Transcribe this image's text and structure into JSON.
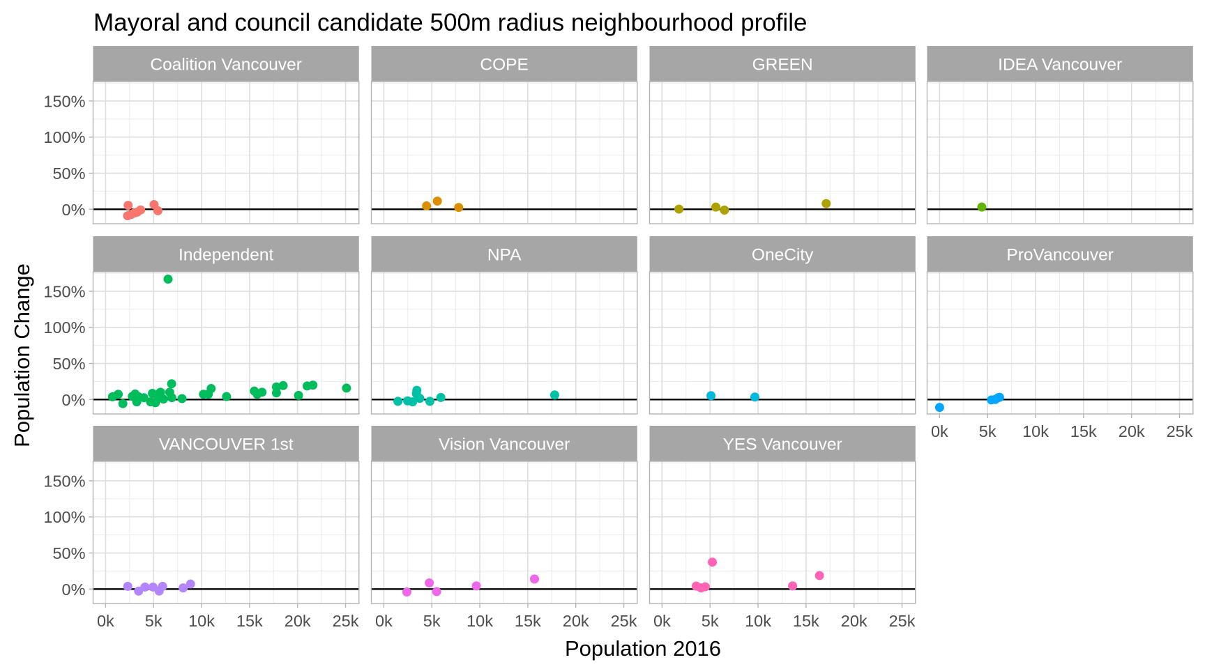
{
  "chart_data": {
    "type": "scatter",
    "title": "Mayoral and council candidate 500m radius neighbourhood profile",
    "xlabel": "Population 2016",
    "ylabel": "Population Change",
    "xlim": [
      -1300,
      26400
    ],
    "ylim": [
      -20,
      177
    ],
    "x_ticks": [
      0,
      5000,
      10000,
      15000,
      20000,
      25000
    ],
    "x_tick_labels": [
      "0k",
      "5k",
      "10k",
      "15k",
      "20k",
      "25k"
    ],
    "y_ticks": [
      0,
      50,
      100,
      150
    ],
    "y_tick_labels": [
      "0%",
      "50%",
      "100%",
      "150%"
    ],
    "grid": true,
    "reference_line_y": 0,
    "facets": [
      {
        "name": "Coalition Vancouver",
        "color": "#F8766D",
        "points": [
          [
            2350,
            5.5
          ],
          [
            2300,
            -9
          ],
          [
            2700,
            -7
          ],
          [
            3000,
            -5
          ],
          [
            3300,
            -4
          ],
          [
            3650,
            -1
          ],
          [
            5050,
            6.5
          ],
          [
            5450,
            -2
          ]
        ]
      },
      {
        "name": "COPE",
        "color": "#DB8E00",
        "points": [
          [
            4450,
            4.7
          ],
          [
            5580,
            11.3
          ],
          [
            7800,
            2.5
          ]
        ]
      },
      {
        "name": "GREEN",
        "color": "#AEA200",
        "points": [
          [
            1760,
            0.2
          ],
          [
            5600,
            3
          ],
          [
            6500,
            -1.2
          ],
          [
            17100,
            7.9
          ]
        ]
      },
      {
        "name": "IDEA Vancouver",
        "color": "#64B200",
        "points": [
          [
            4400,
            3
          ]
        ]
      },
      {
        "name": "Independent",
        "color": "#00BD5C",
        "points": [
          [
            6510,
            166.8
          ],
          [
            720,
            3.8
          ],
          [
            1320,
            7.3
          ],
          [
            1800,
            -5.7
          ],
          [
            2790,
            4.4
          ],
          [
            3080,
            7.6
          ],
          [
            3250,
            -3.2
          ],
          [
            3440,
            3.8
          ],
          [
            3990,
            2.5
          ],
          [
            4690,
            -3.2
          ],
          [
            4880,
            8.5
          ],
          [
            5190,
            -4.4
          ],
          [
            5480,
            1.6
          ],
          [
            5720,
            10.1
          ],
          [
            6030,
            0.6
          ],
          [
            6680,
            10.1
          ],
          [
            6880,
            21.8
          ],
          [
            6900,
            2.5
          ],
          [
            7960,
            1.3
          ],
          [
            10200,
            7.3
          ],
          [
            10700,
            7.3
          ],
          [
            11000,
            15.2
          ],
          [
            12600,
            4.1
          ],
          [
            15500,
            11.7
          ],
          [
            15800,
            7.3
          ],
          [
            16300,
            10.1
          ],
          [
            17800,
            9.2
          ],
          [
            17800,
            17.4
          ],
          [
            18500,
            19.3
          ],
          [
            20100,
            5.7
          ],
          [
            21000,
            18.7
          ],
          [
            21600,
            19.9
          ],
          [
            25100,
            15.8
          ]
        ]
      },
      {
        "name": "NPA",
        "color": "#00C1A7",
        "points": [
          [
            1470,
            -2.5
          ],
          [
            2480,
            -1.9
          ],
          [
            3000,
            -3.2
          ],
          [
            3440,
            12.7
          ],
          [
            3400,
            8
          ],
          [
            3750,
            1.6
          ],
          [
            4800,
            -2.5
          ],
          [
            5940,
            2.8
          ],
          [
            17800,
            6.3
          ]
        ]
      },
      {
        "name": "OneCity",
        "color": "#00BADE",
        "points": [
          [
            5100,
            5.3
          ],
          [
            9670,
            3.4
          ]
        ]
      },
      {
        "name": "ProVancouver",
        "color": "#00A6FF",
        "points": [
          [
            0,
            -11
          ],
          [
            5400,
            -0.6
          ],
          [
            5800,
            0
          ],
          [
            6100,
            2.5
          ],
          [
            6250,
            3
          ]
        ]
      },
      {
        "name": "VANCOUVER 1st",
        "color": "#B385FF",
        "points": [
          [
            2310,
            3.8
          ],
          [
            3440,
            -2.8
          ],
          [
            4110,
            2.8
          ],
          [
            4950,
            2.8
          ],
          [
            5580,
            -2.8
          ],
          [
            5940,
            3.8
          ],
          [
            8080,
            1.6
          ],
          [
            8850,
            7.0
          ]
        ]
      },
      {
        "name": "Vision Vancouver",
        "color": "#EF67EB",
        "points": [
          [
            2400,
            -4.1
          ],
          [
            4740,
            8.5
          ],
          [
            5500,
            -3.5
          ],
          [
            9640,
            4.4
          ],
          [
            15700,
            13.9
          ]
        ]
      },
      {
        "name": "YES Vancouver",
        "color": "#FF63B6",
        "points": [
          [
            3560,
            4.1
          ],
          [
            4060,
            1.6
          ],
          [
            4500,
            3.2
          ],
          [
            5240,
            37.3
          ],
          [
            13600,
            4.4
          ],
          [
            16400,
            18.7
          ]
        ]
      }
    ]
  }
}
